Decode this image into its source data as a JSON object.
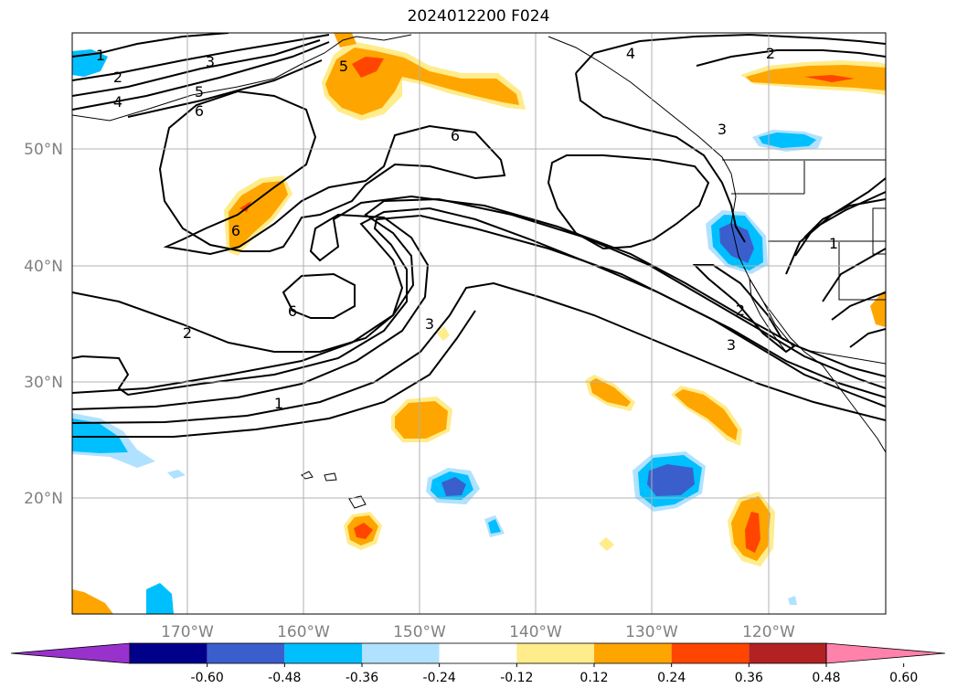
{
  "title": "2024012200 F024",
  "lat_labels": [
    "50°N",
    "40°N",
    "30°N",
    "20°N"
  ],
  "lon_labels": [
    "170°W",
    "160°W",
    "150°W",
    "140°W",
    "130°W",
    "120°W"
  ],
  "contour_labels": [
    "1",
    "2",
    "3",
    "4",
    "5",
    "6",
    "6",
    "6",
    "6",
    "5",
    "2",
    "1",
    "3",
    "3",
    "2",
    "3",
    "4",
    "2",
    "1"
  ],
  "colorbar": {
    "tick_labels": [
      "-0.60",
      "-0.48",
      "-0.36",
      "-0.24",
      "-0.12",
      "0.12",
      "0.24",
      "0.36",
      "0.48",
      "0.60"
    ],
    "colors": [
      "#9932cc",
      "#00008b",
      "#3a5fcd",
      "#00bfff",
      "#b0e2ff",
      "#ffffff",
      "#ffec8b",
      "#ffa500",
      "#ff4500",
      "#b22222",
      "#ff82ab"
    ]
  }
}
